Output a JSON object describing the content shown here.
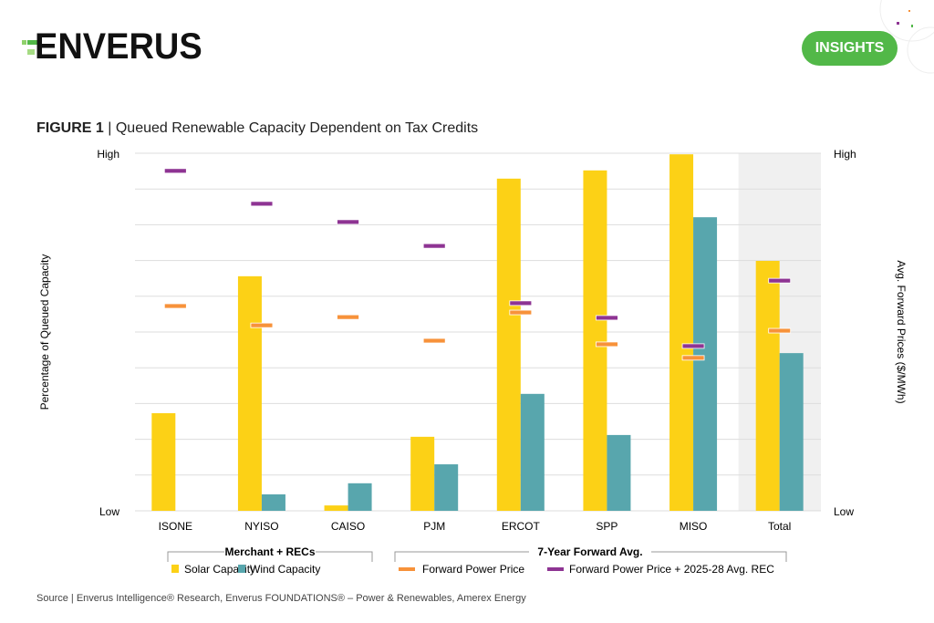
{
  "header": {
    "logo_text": "ENVERUS",
    "badge": "INSIGHTS"
  },
  "figure": {
    "label": "FIGURE 1",
    "separator": " | ",
    "title": "Queued Renewable Capacity Dependent on Tax Credits"
  },
  "source": "Source | Enverus Intelligence® Research, Enverus FOUNDATIONS® – Power & Renewables, Amerex Energy",
  "colors": {
    "solar": "#fcd116",
    "wind": "#58a6ad",
    "forward": "#f7923a",
    "forward_rec": "#8e3493",
    "brand": "#52b848",
    "shade": "#f0f0f0"
  },
  "chart_data": {
    "type": "bar",
    "title": "Queued Renewable Capacity Dependent on Tax Credits",
    "ylabel": "Percentage of Queued Capacity",
    "y2label": "Avg. Forward Prices ($/MWh)",
    "y_ticks": {
      "low": "Low",
      "high": "High"
    },
    "y2_ticks": {
      "low": "Low",
      "high": "High"
    },
    "ylim": [
      0,
      100
    ],
    "grid": true,
    "highlighted_category": "Total",
    "categories": [
      "ISONE",
      "NYISO",
      "CAISO",
      "PJM",
      "ERCOT",
      "SPP",
      "MISO",
      "Total"
    ],
    "series": [
      {
        "name": "Solar Capacity",
        "kind": "bar",
        "values": [
          27.3,
          65.6,
          1.5,
          20.7,
          92.9,
          95.2,
          99.7,
          69.9
        ]
      },
      {
        "name": "Wind Capacity",
        "kind": "bar",
        "values": [
          0,
          4.6,
          7.7,
          13.0,
          32.7,
          21.2,
          82.1,
          44.1
        ]
      },
      {
        "name": "Forward Power Price",
        "kind": "marker",
        "values": [
          57.4,
          52.0,
          54.3,
          47.7,
          55.6,
          46.7,
          42.9,
          50.5
        ]
      },
      {
        "name": "Forward Power Price + 2025-28 Avg. REC",
        "kind": "marker",
        "values": [
          95.2,
          86.0,
          80.9,
          74.2,
          58.2,
          54.1,
          46.2,
          64.5
        ]
      }
    ],
    "legend": {
      "placement": "bottom",
      "groups": [
        {
          "title": "Merchant + RECs",
          "items": [
            "Solar Capacity",
            "Wind Capacity"
          ]
        },
        {
          "title": "7-Year Forward Avg.",
          "items": [
            "Forward Power Price",
            "Forward Power Price + 2025-28 Avg. REC"
          ]
        }
      ]
    }
  }
}
